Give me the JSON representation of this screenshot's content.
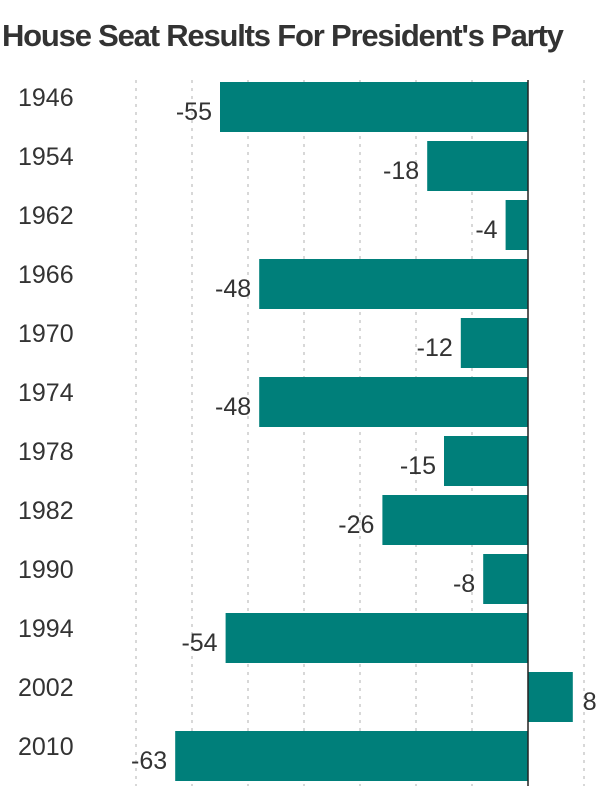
{
  "chart_data": {
    "type": "bar",
    "orientation": "horizontal",
    "title": "House Seat Results For President's Party",
    "categories": [
      "1946",
      "1954",
      "1962",
      "1966",
      "1970",
      "1974",
      "1978",
      "1982",
      "1990",
      "1994",
      "2002",
      "2010"
    ],
    "values": [
      -55,
      -18,
      -4,
      -48,
      -12,
      -48,
      -15,
      -26,
      -8,
      -54,
      8,
      -63
    ],
    "xlim": [
      -70,
      10
    ],
    "grid": true,
    "legend": "none",
    "bar_color": "#007f7a",
    "grid_color": "#cccccc",
    "zero_line_color": "#222222",
    "text_color": "#333333"
  }
}
